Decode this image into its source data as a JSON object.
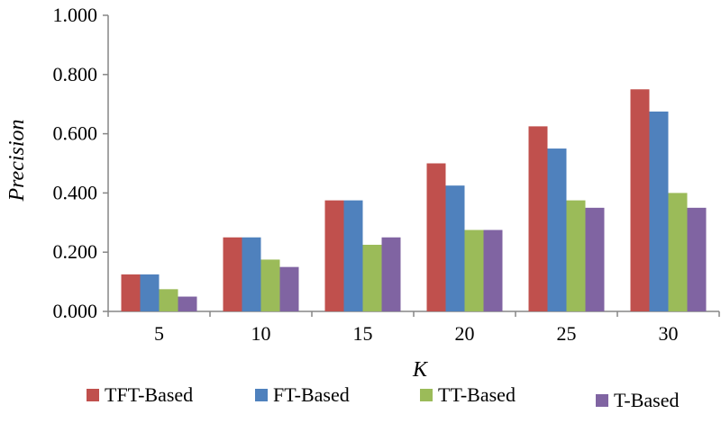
{
  "chart_data": {
    "type": "bar",
    "categories": [
      "5",
      "10",
      "15",
      "20",
      "25",
      "30"
    ],
    "series": [
      {
        "name": "TFT-Based",
        "color": "#C0504D",
        "values": [
          0.125,
          0.25,
          0.375,
          0.5,
          0.625,
          0.75
        ]
      },
      {
        "name": "FT-Based",
        "color": "#4F81BD",
        "values": [
          0.125,
          0.25,
          0.375,
          0.425,
          0.55,
          0.675
        ]
      },
      {
        "name": "TT-Based",
        "color": "#9BBB59",
        "values": [
          0.075,
          0.175,
          0.225,
          0.275,
          0.375,
          0.4
        ]
      },
      {
        "name": "T-Based",
        "color": "#8064A2",
        "values": [
          0.05,
          0.15,
          0.25,
          0.275,
          0.35,
          0.35
        ]
      }
    ],
    "title": "",
    "xlabel": "K",
    "ylabel": "Precision",
    "ylim": [
      0,
      1.0
    ],
    "yticks": [
      "0.000",
      "0.200",
      "0.400",
      "0.600",
      "0.800",
      "1.000"
    ],
    "grid": false,
    "legend_position": "bottom"
  }
}
